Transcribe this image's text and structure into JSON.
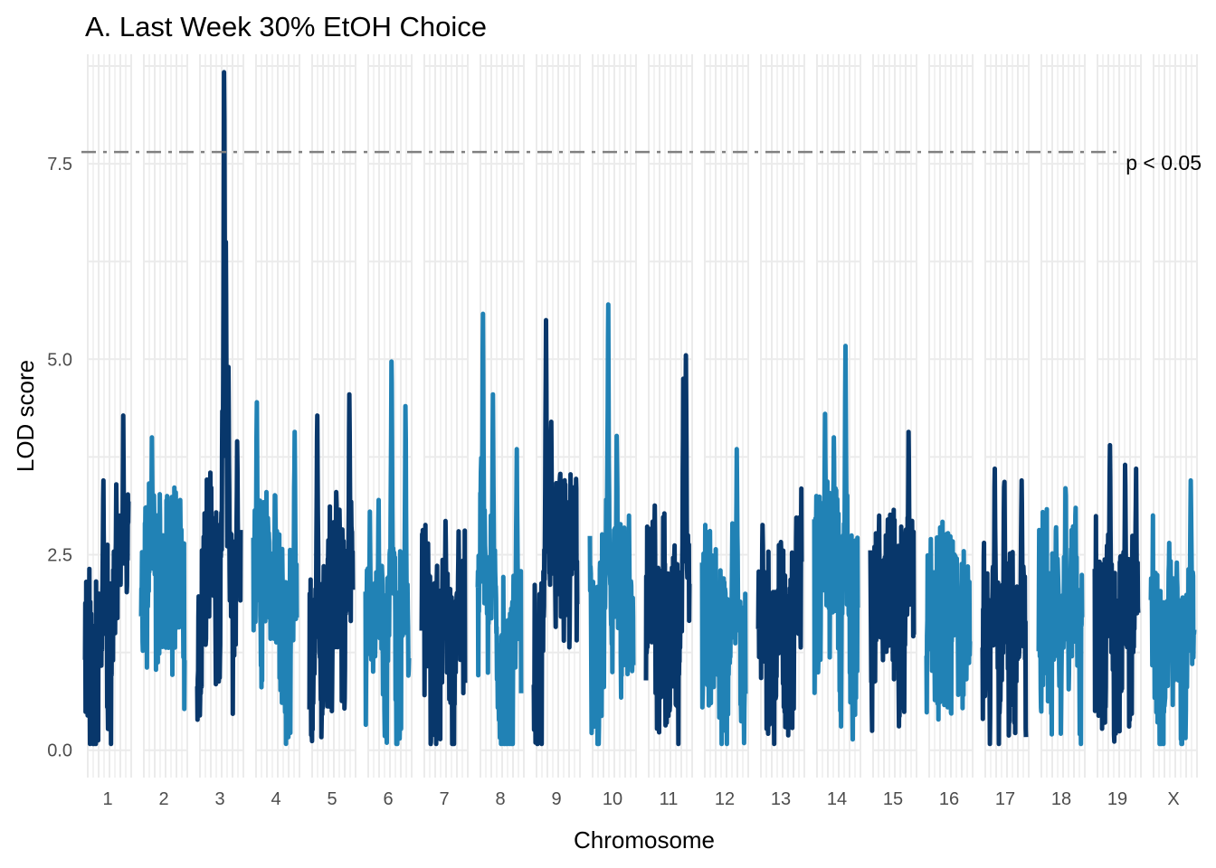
{
  "chart_data": {
    "type": "line",
    "title": "A. Last Week 30% EtOH Choice",
    "xlabel": "Chromosome",
    "ylabel": "LOD score",
    "ylim": [
      -0.35,
      8.9
    ],
    "y_ticks": [
      {
        "value": 0.0,
        "label": "0.0"
      },
      {
        "value": 2.5,
        "label": "2.5"
      },
      {
        "value": 5.0,
        "label": "5.0"
      },
      {
        "value": 7.5,
        "label": "7.5"
      }
    ],
    "grid": true,
    "colors": {
      "dark": "#08376b",
      "light": "#2182b5",
      "grid": "#ebebeb",
      "threshold": "#808080"
    },
    "threshold": {
      "value": 7.65,
      "label": "p < 0.05",
      "style": "dashed"
    },
    "chromosomes": [
      {
        "name": "1",
        "color": "dark",
        "seed": 11,
        "peaks": [
          [
            0.42,
            3.45
          ],
          [
            0.72,
            3.4
          ],
          [
            0.88,
            4.28
          ],
          [
            0.92,
            3.1
          ]
        ]
      },
      {
        "name": "2",
        "color": "light",
        "seed": 23,
        "peaks": [
          [
            0.25,
            4.0
          ],
          [
            0.1,
            3.1
          ],
          [
            0.6,
            3.25
          ],
          [
            0.9,
            3.2
          ]
        ]
      },
      {
        "name": "3",
        "color": "dark",
        "seed": 37,
        "peaks": [
          [
            0.62,
            8.67
          ],
          [
            0.66,
            6.5
          ],
          [
            0.72,
            4.9
          ],
          [
            0.92,
            3.95
          ],
          [
            0.3,
            3.55
          ]
        ]
      },
      {
        "name": "4",
        "color": "light",
        "seed": 41,
        "peaks": [
          [
            0.08,
            4.45
          ],
          [
            0.5,
            3.5
          ],
          [
            0.95,
            4.07
          ],
          [
            0.3,
            3.3
          ]
        ]
      },
      {
        "name": "5",
        "color": "dark",
        "seed": 53,
        "peaks": [
          [
            0.18,
            4.28
          ],
          [
            0.92,
            4.55
          ],
          [
            0.62,
            3.3
          ]
        ]
      },
      {
        "name": "6",
        "color": "light",
        "seed": 67,
        "peaks": [
          [
            0.6,
            4.97
          ],
          [
            0.92,
            4.4
          ],
          [
            0.1,
            3.05
          ],
          [
            0.3,
            3.2
          ]
        ]
      },
      {
        "name": "7",
        "color": "dark",
        "seed": 71,
        "peaks": [
          [
            0.55,
            2.93
          ],
          [
            0.85,
            2.8
          ],
          [
            0.1,
            2.6
          ]
        ]
      },
      {
        "name": "8",
        "color": "light",
        "seed": 83,
        "peaks": [
          [
            0.12,
            5.58
          ],
          [
            0.35,
            4.55
          ],
          [
            0.9,
            3.85
          ]
        ]
      },
      {
        "name": "9",
        "color": "dark",
        "seed": 97,
        "peaks": [
          [
            0.28,
            5.5
          ],
          [
            0.4,
            4.2
          ],
          [
            0.6,
            3.45
          ],
          [
            0.85,
            2.9
          ]
        ]
      },
      {
        "name": "10",
        "color": "light",
        "seed": 101,
        "peaks": [
          [
            0.42,
            5.7
          ],
          [
            0.62,
            4.02
          ],
          [
            0.9,
            3.0
          ]
        ]
      },
      {
        "name": "11",
        "color": "dark",
        "seed": 113,
        "peaks": [
          [
            0.92,
            5.05
          ],
          [
            0.86,
            4.75
          ],
          [
            0.1,
            2.7
          ]
        ]
      },
      {
        "name": "12",
        "color": "light",
        "seed": 127,
        "peaks": [
          [
            0.8,
            3.85
          ],
          [
            0.3,
            2.0
          ],
          [
            0.7,
            2.9
          ]
        ]
      },
      {
        "name": "13",
        "color": "dark",
        "seed": 131,
        "peaks": [
          [
            0.1,
            2.88
          ],
          [
            0.95,
            2.9
          ],
          [
            0.5,
            2.2
          ]
        ]
      },
      {
        "name": "14",
        "color": "light",
        "seed": 139,
        "peaks": [
          [
            0.25,
            4.3
          ],
          [
            0.45,
            4.0
          ],
          [
            0.72,
            5.17
          ]
        ]
      },
      {
        "name": "15",
        "color": "dark",
        "seed": 149,
        "peaks": [
          [
            0.88,
            4.07
          ],
          [
            0.4,
            2.95
          ],
          [
            0.2,
            3.0
          ]
        ]
      },
      {
        "name": "16",
        "color": "light",
        "seed": 157,
        "peaks": [
          [
            0.1,
            2.7
          ],
          [
            0.7,
            2.45
          ],
          [
            0.95,
            2.35
          ]
        ]
      },
      {
        "name": "17",
        "color": "dark",
        "seed": 163,
        "peaks": [
          [
            0.28,
            3.6
          ],
          [
            0.5,
            3.55
          ],
          [
            0.9,
            3.45
          ]
        ]
      },
      {
        "name": "18",
        "color": "light",
        "seed": 173,
        "peaks": [
          [
            0.62,
            3.35
          ],
          [
            0.85,
            3.1
          ],
          [
            0.4,
            2.85
          ]
        ]
      },
      {
        "name": "19",
        "color": "dark",
        "seed": 181,
        "peaks": [
          [
            0.35,
            3.9
          ],
          [
            0.7,
            3.65
          ],
          [
            0.95,
            3.6
          ]
        ]
      },
      {
        "name": "X",
        "color": "light",
        "seed": 191,
        "peaks": [
          [
            0.42,
            2.65
          ],
          [
            0.92,
            3.45
          ],
          [
            0.6,
            2.4
          ]
        ]
      }
    ]
  }
}
